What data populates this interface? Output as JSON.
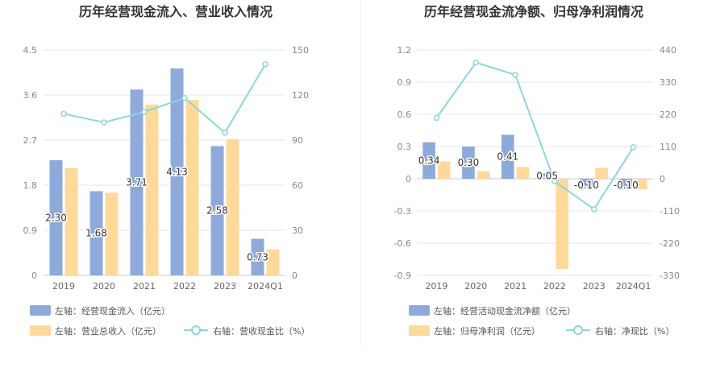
{
  "colors": {
    "bar_primary": "#8eaadb",
    "bar_secondary": "#ffd99a",
    "line": "#8dd6dc",
    "grid": "#e5e5ee",
    "divider": "#eeeeee"
  },
  "chart_data": [
    {
      "type": "bar",
      "title": "历年经营现金流入、营业收入情况",
      "categories": [
        "2019",
        "2020",
        "2021",
        "2022",
        "2023",
        "2024Q1"
      ],
      "left_axis": {
        "ticks": [
          "0",
          "0.9",
          "1.8",
          "2.7",
          "3.6",
          "4.5"
        ],
        "ylim": [
          0,
          4.5
        ]
      },
      "right_axis": {
        "ticks": [
          "0",
          "30",
          "60",
          "90",
          "120",
          "150"
        ],
        "ylim": [
          0,
          150
        ]
      },
      "series": [
        {
          "name": "左轴：经营现金流入（亿元）",
          "type": "bar",
          "axis": "left",
          "values": [
            2.3,
            1.68,
            3.71,
            4.13,
            2.58,
            0.73
          ],
          "data_labels": [
            "2.30",
            "1.68",
            "3.71",
            "4.13",
            "2.58",
            "0.73"
          ]
        },
        {
          "name": "左轴：营业总收入（亿元）",
          "type": "bar",
          "axis": "left",
          "values": [
            2.14,
            1.65,
            3.41,
            3.5,
            2.72,
            0.52
          ]
        },
        {
          "name": "右轴：营收现金比（%）",
          "type": "line",
          "axis": "right",
          "values": [
            107.5,
            101.8,
            108.8,
            118.0,
            94.9,
            140.4
          ]
        }
      ],
      "grid": true,
      "legend_position": "bottom-left"
    },
    {
      "type": "bar",
      "title": "历年经营现金流净额、归母净利润情况",
      "categories": [
        "2019",
        "2020",
        "2021",
        "2022",
        "2023",
        "2024Q1"
      ],
      "left_axis": {
        "ticks": [
          "-0.9",
          "-0.6",
          "-0.3",
          "0",
          "0.3",
          "0.6",
          "0.9",
          "1.2"
        ],
        "ylim": [
          -0.9,
          1.2
        ]
      },
      "right_axis": {
        "ticks": [
          "-330",
          "-220",
          "-110",
          "0",
          "110",
          "220",
          "330",
          "440"
        ],
        "ylim": [
          -330,
          440
        ]
      },
      "series": [
        {
          "name": "左轴：经营活动现金流净额（亿元）",
          "type": "bar",
          "axis": "left",
          "values": [
            0.34,
            0.3,
            0.41,
            0.05,
            -0.1,
            -0.1
          ],
          "data_labels": [
            "0.34",
            "0.30",
            "0.41",
            "0.05",
            "-0.10",
            "-0.10"
          ]
        },
        {
          "name": "左轴：归母净利润（亿元）",
          "type": "bar",
          "axis": "left",
          "values": [
            0.16,
            0.07,
            0.11,
            -0.84,
            0.1,
            -0.1
          ]
        },
        {
          "name": "右轴：净现比（%）",
          "type": "line",
          "axis": "right",
          "values": [
            208,
            397,
            355,
            -9,
            -104,
            108
          ]
        }
      ],
      "grid": true,
      "legend_position": "bottom-left"
    }
  ]
}
